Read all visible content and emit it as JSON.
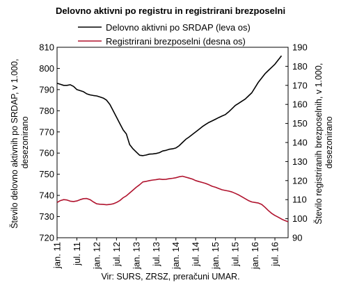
{
  "chart_data": {
    "type": "line",
    "title": "Delovno aktivni po registru in registrirani brezposelni",
    "source_note": "Vir: SURS, ZRSZ, preračuni UMAR.",
    "x_tick_labels": [
      "jan. 11",
      "jul. 11",
      "jan. 12",
      "jul. 12",
      "jan. 13",
      "jul. 13",
      "jan. 14",
      "jul. 14",
      "jan. 15",
      "jul. 15",
      "jan. 16",
      "jul. 16"
    ],
    "x_unit": "months since jan. 11",
    "x_range": [
      0,
      70
    ],
    "y_left": {
      "label": "Število delovno aktivnih po SRDAP, v 1.000, desezonirano",
      "label_lines": [
        "Število delovno aktivnih po SRDAP, v 1.000,",
        "desezonirano"
      ],
      "range": [
        720,
        810
      ],
      "ticks": [
        720,
        730,
        740,
        750,
        760,
        770,
        780,
        790,
        800,
        810
      ]
    },
    "y_right": {
      "label": "Število registriranih brezposelnih, v 1.000, desezonirano",
      "label_lines": [
        "Število registriranih brezposelnih, v 1.000,",
        "desezonirano"
      ],
      "range": [
        90,
        190
      ],
      "ticks": [
        90,
        100,
        110,
        120,
        130,
        140,
        150,
        160,
        170,
        180,
        190
      ]
    },
    "grid": false,
    "legend_position": "top",
    "series": [
      {
        "name": "Delovno aktivni po SRDAP (leva os)",
        "axis": "left",
        "color": "#000000",
        "x": [
          0,
          1,
          2,
          3,
          4,
          5,
          6,
          7,
          8,
          9,
          10,
          11,
          12,
          13,
          14,
          15,
          16,
          17,
          18,
          19,
          20,
          21,
          22,
          23,
          24,
          25,
          26,
          27,
          28,
          29,
          30,
          31,
          32,
          33,
          34,
          35,
          36,
          37,
          38,
          39,
          40,
          41,
          42,
          43,
          44,
          45,
          46,
          47,
          48,
          49,
          50,
          51,
          52,
          53,
          54,
          55,
          56,
          57,
          58,
          59,
          60,
          61,
          62,
          63,
          64,
          65,
          66,
          67,
          68
        ],
        "values": [
          793,
          792.5,
          792,
          792,
          792.3,
          791.5,
          790,
          789.5,
          789,
          788,
          787.5,
          787.2,
          787,
          786.5,
          786,
          785,
          783,
          780,
          777,
          774,
          771,
          769,
          764,
          762,
          760.5,
          759,
          758.8,
          759.1,
          759.5,
          759.6,
          759.8,
          760.2,
          761,
          761.3,
          761.8,
          762,
          762.4,
          763.5,
          765,
          766.5,
          767.6,
          768.8,
          770,
          771.2,
          772.5,
          773.5,
          774.5,
          775.2,
          776,
          776.8,
          777.5,
          778.2,
          779.5,
          781,
          782.5,
          783.5,
          784.5,
          785.5,
          787,
          788.5,
          791,
          793.5,
          795.5,
          797.5,
          799,
          800.5,
          802,
          804,
          806
        ]
      },
      {
        "name": "Registrirani brezposelni (desna os)",
        "axis": "right",
        "color": "#b0122d",
        "x": [
          0,
          1,
          2,
          3,
          4,
          5,
          6,
          7,
          8,
          9,
          10,
          11,
          12,
          13,
          14,
          15,
          16,
          17,
          18,
          19,
          20,
          21,
          22,
          23,
          24,
          25,
          26,
          27,
          28,
          29,
          30,
          31,
          32,
          33,
          34,
          35,
          36,
          37,
          38,
          39,
          40,
          41,
          42,
          43,
          44,
          45,
          46,
          47,
          48,
          49,
          50,
          51,
          52,
          53,
          54,
          55,
          56,
          57,
          58,
          59,
          60,
          61,
          62,
          63,
          64,
          65,
          66,
          67,
          68,
          69,
          70
        ],
        "values": [
          108.5,
          109.5,
          110,
          109.8,
          109.2,
          109,
          109.3,
          110,
          110.5,
          110.6,
          110,
          108.8,
          107.8,
          107.6,
          107.5,
          107.3,
          107.5,
          107.8,
          108.5,
          109.5,
          111,
          112,
          113.5,
          115,
          116.5,
          117.8,
          119.3,
          119.6,
          120,
          120.3,
          120.5,
          120.8,
          120.6,
          120.7,
          121,
          121.2,
          121.5,
          122,
          122.3,
          121.8,
          121.3,
          120.8,
          120,
          119.5,
          119,
          118.5,
          117.8,
          117,
          116.5,
          115.8,
          115.2,
          114.8,
          114.5,
          114,
          113.3,
          112.5,
          111.5,
          110.5,
          109.5,
          108.8,
          108.5,
          108.2,
          107.5,
          106,
          104.3,
          102.8,
          101.7,
          100.8,
          99.8,
          99,
          98.4
        ]
      }
    ]
  }
}
